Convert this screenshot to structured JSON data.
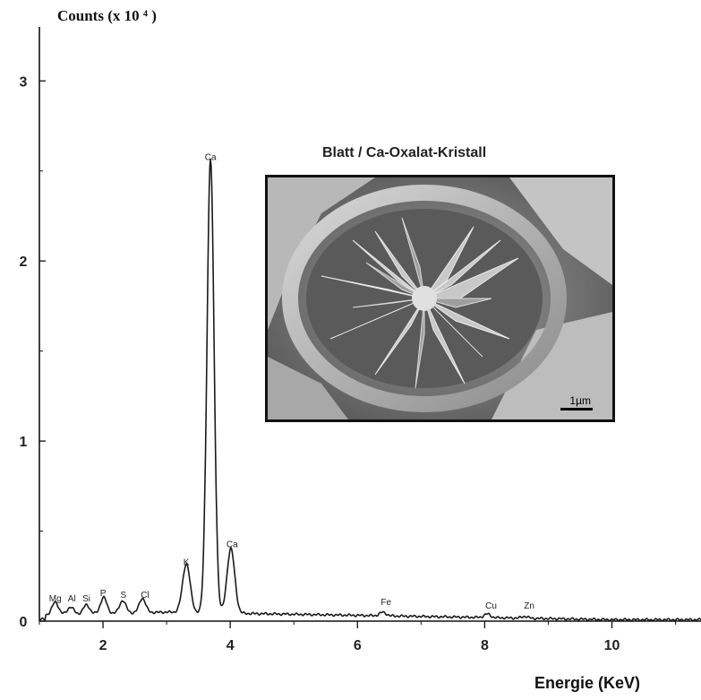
{
  "chart_data": {
    "type": "line",
    "title": "",
    "ylabel": "Counts (x 10 ⁴ )",
    "xlabel": "Energie  (KeV)",
    "xlim": [
      1.0,
      11.4
    ],
    "ylim": [
      0,
      3.3
    ],
    "x_ticks": [
      {
        "value": 2,
        "label": "2"
      },
      {
        "value": 4,
        "label": "4"
      },
      {
        "value": 6,
        "label": "6"
      },
      {
        "value": 8,
        "label": "8"
      },
      {
        "value": 10,
        "label": "10"
      }
    ],
    "y_ticks": [
      {
        "value": 0,
        "label": "0"
      },
      {
        "value": 1,
        "label": "1"
      },
      {
        "value": 2,
        "label": "2"
      },
      {
        "value": 3,
        "label": "3"
      }
    ],
    "grid": false,
    "series": [
      {
        "peaks": [
          {
            "element": "Mg",
            "x": 1.25,
            "y": 0.07
          },
          {
            "element": "Al",
            "x": 1.49,
            "y": 0.04
          },
          {
            "element": "Si",
            "x": 1.74,
            "y": 0.05
          },
          {
            "element": "P",
            "x": 2.01,
            "y": 0.09
          },
          {
            "element": "S",
            "x": 2.31,
            "y": 0.07
          },
          {
            "element": "Cl",
            "x": 2.62,
            "y": 0.08
          },
          {
            "element": "K",
            "x": 3.31,
            "y": 0.27
          },
          {
            "element": "Ca",
            "x": 3.69,
            "y": 2.52
          },
          {
            "element": "Ca",
            "x": 4.01,
            "y": 0.36
          },
          {
            "element": "Fe",
            "x": 6.4,
            "y": 0.02
          },
          {
            "element": "Cu",
            "x": 8.04,
            "y": 0.02
          },
          {
            "element": "Zn",
            "x": 8.63,
            "y": 0.01
          }
        ]
      }
    ],
    "annotations": [
      {
        "text": "Mg",
        "x": 1.25,
        "y": 0.11
      },
      {
        "text": "Al",
        "x": 1.51,
        "y": 0.11
      },
      {
        "text": "Si",
        "x": 1.74,
        "y": 0.11
      },
      {
        "text": "P",
        "x": 2.0,
        "y": 0.14
      },
      {
        "text": "S",
        "x": 2.32,
        "y": 0.13
      },
      {
        "text": "Cl",
        "x": 2.66,
        "y": 0.13
      },
      {
        "text": "K",
        "x": 3.31,
        "y": 0.31
      },
      {
        "text": "Ca",
        "x": 3.69,
        "y": 2.56
      },
      {
        "text": "Ca",
        "x": 4.03,
        "y": 0.41
      },
      {
        "text": "Fe",
        "x": 6.45,
        "y": 0.09
      },
      {
        "text": "Cu",
        "x": 8.1,
        "y": 0.07
      },
      {
        "text": "Zn",
        "x": 8.7,
        "y": 0.07
      }
    ]
  },
  "inset": {
    "caption": "Blatt / Ca-Oxalat-Kristall",
    "scale_bar_label": "1µm"
  },
  "colors": {
    "axis": "#111111",
    "line": "#1a1a1a",
    "inset_border": "#111111"
  }
}
